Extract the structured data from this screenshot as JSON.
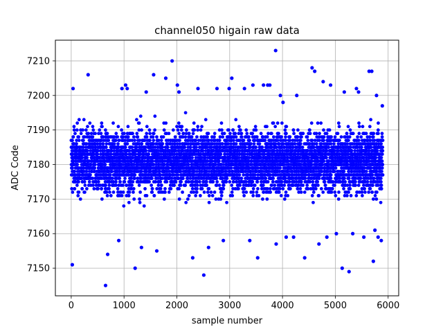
{
  "chart_data": {
    "type": "scatter",
    "title": "channel050 higain raw data",
    "xlabel": "sample number",
    "ylabel": "ADC Code",
    "xlim": [
      -300,
      6200
    ],
    "ylim": [
      7142,
      7216
    ],
    "xticks": [
      0,
      1000,
      2000,
      3000,
      4000,
      5000,
      6000
    ],
    "yticks": [
      7150,
      7160,
      7170,
      7180,
      7190,
      7200,
      7210
    ],
    "grid": true,
    "marker_color": "#0000ff",
    "series": [
      {
        "n_points": 5900,
        "bulk_range": [
          7162,
          7196
        ],
        "center": 7181,
        "x": [
          20,
          35,
          320,
          650,
          690,
          900,
          960,
          1030,
          1060,
          1210,
          1330,
          1420,
          1560,
          1620,
          1790,
          1910,
          2010,
          2040,
          2300,
          2400,
          2510,
          2600,
          2760,
          2880,
          2990,
          3040,
          3280,
          3380,
          3440,
          3530,
          3640,
          3720,
          3760,
          3870,
          3880,
          3960,
          4010,
          4070,
          4210,
          4270,
          4420,
          4560,
          4610,
          4690,
          4770,
          4840,
          4910,
          5020,
          5130,
          5170,
          5260,
          5330,
          5400,
          5440,
          5540,
          5640,
          5690,
          5720,
          5750,
          5780,
          5810,
          5870,
          5890
        ],
        "y": [
          7151,
          7202,
          7206,
          7145,
          7154,
          7158,
          7202,
          7203,
          7202,
          7150,
          7156,
          7201,
          7206,
          7155,
          7205,
          7210,
          7203,
          7201,
          7153,
          7202,
          7148,
          7156,
          7202,
          7158,
          7202,
          7205,
          7202,
          7158,
          7203,
          7153,
          7203,
          7203,
          7203,
          7213,
          7157,
          7200,
          7198,
          7159,
          7159,
          7200,
          7153,
          7208,
          7207,
          7157,
          7204,
          7159,
          7203,
          7160,
          7150,
          7201,
          7149,
          7160,
          7202,
          7201,
          7159,
          7207,
          7207,
          7152,
          7161,
          7200,
          7159,
          7158,
          7197
        ]
      }
    ]
  }
}
